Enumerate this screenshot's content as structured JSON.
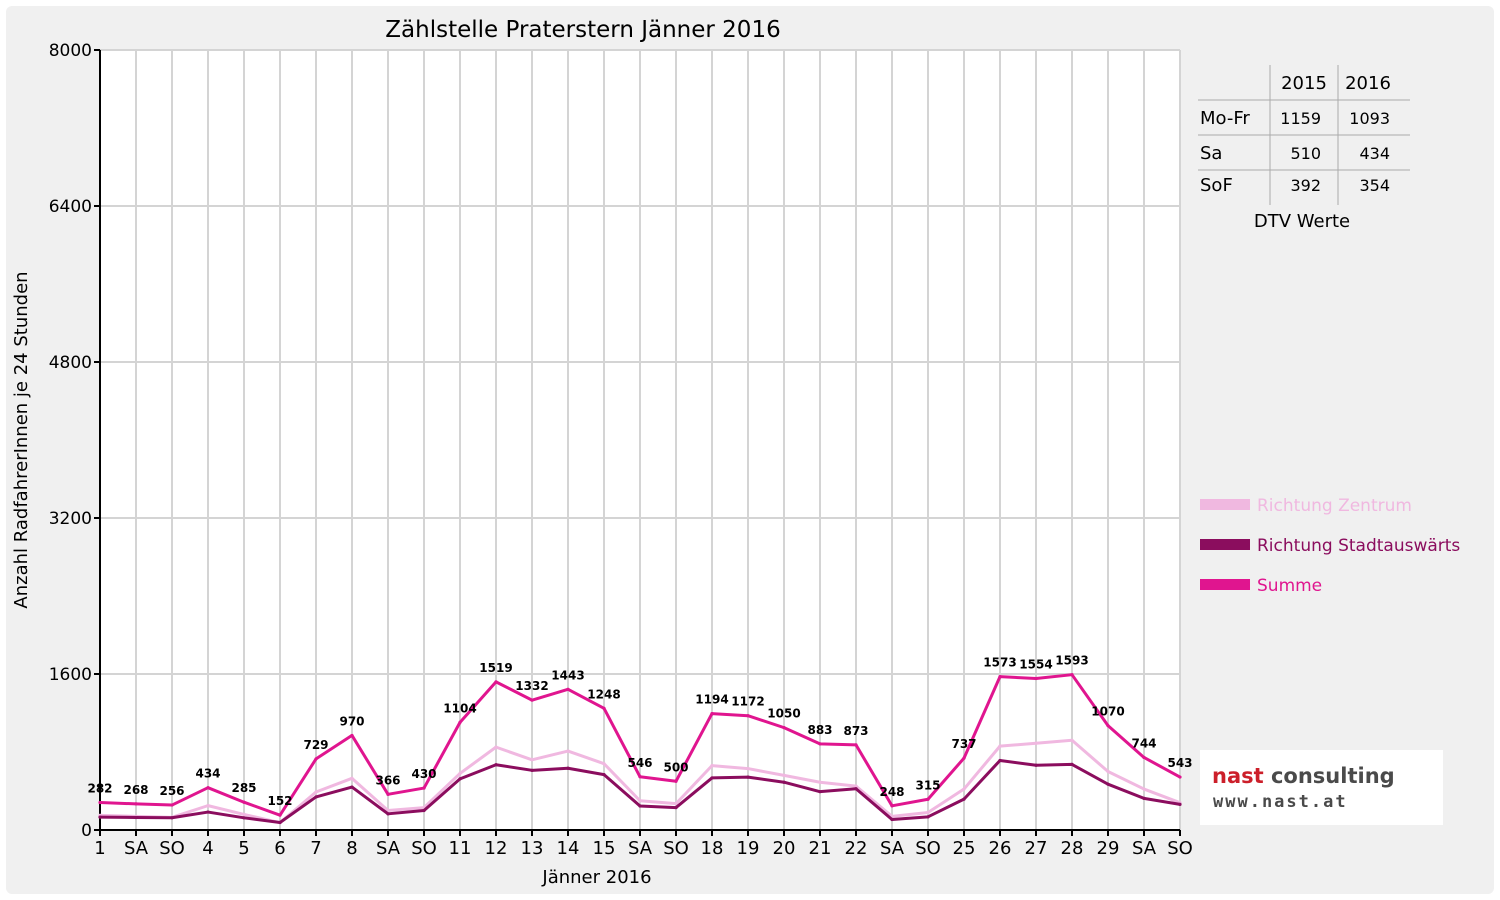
{
  "chart_data": {
    "type": "line",
    "title": "Zählstelle Praterstern Jänner 2016",
    "xlabel": "Jänner 2016",
    "ylabel": "Anzahl RadfahrerInnen je 24 Stunden",
    "ylim": [
      0,
      8000
    ],
    "yticks": [
      0,
      1600,
      3200,
      4800,
      6400,
      8000
    ],
    "grid": true,
    "legend_position": "right",
    "categories": [
      "1",
      "SA",
      "SO",
      "4",
      "5",
      "6",
      "7",
      "8",
      "SA",
      "SO",
      "11",
      "12",
      "13",
      "14",
      "15",
      "SA",
      "SO",
      "18",
      "19",
      "20",
      "21",
      "22",
      "SA",
      "SO",
      "25",
      "26",
      "27",
      "28",
      "29",
      "SA",
      "SO"
    ],
    "red_categories": [
      0,
      2,
      5,
      9,
      16,
      23,
      30
    ],
    "series": [
      {
        "name": "Richtung Zentrum",
        "color": "#f0b8e0",
        "values": [
          150,
          140,
          130,
          250,
          160,
          75,
          390,
          530,
          200,
          230,
          580,
          850,
          720,
          810,
          680,
          300,
          270,
          660,
          630,
          560,
          490,
          450,
          140,
          180,
          420,
          860,
          890,
          920,
          600,
          420,
          280
        ]
      },
      {
        "name": "Richtung Stadtauswärts",
        "color": "#8b0d5e",
        "values": [
          132,
          128,
          126,
          184,
          125,
          77,
          339,
          440,
          166,
          200,
          524,
          669,
          612,
          633,
          568,
          246,
          230,
          534,
          542,
          490,
          393,
          423,
          108,
          135,
          317,
          713,
          664,
          673,
          470,
          324,
          263
        ]
      },
      {
        "name": "Summe",
        "color": "#e0158f",
        "values": [
          282,
          268,
          256,
          434,
          285,
          152,
          729,
          970,
          366,
          430,
          1104,
          1519,
          1332,
          1443,
          1248,
          546,
          500,
          1194,
          1172,
          1050,
          883,
          873,
          248,
          315,
          737,
          1573,
          1554,
          1593,
          1070,
          744,
          543
        ]
      }
    ],
    "data_labels": [
      282,
      268,
      256,
      434,
      285,
      152,
      729,
      970,
      366,
      430,
      1104,
      1519,
      1332,
      1443,
      1248,
      546,
      500,
      1194,
      1172,
      1050,
      883,
      873,
      248,
      315,
      737,
      1573,
      1554,
      1593,
      1070,
      744,
      543
    ]
  },
  "dtv_table": {
    "headers": [
      "",
      "2015",
      "2016"
    ],
    "rows": [
      {
        "label": "Mo-Fr",
        "v2015": "1159",
        "v2016": "1093"
      },
      {
        "label": "Sa",
        "v2015": "510",
        "v2016": "434"
      },
      {
        "label": "SoF",
        "v2015": "392",
        "v2016": "354"
      }
    ],
    "caption": "DTV Werte"
  },
  "logo": {
    "brand_part1": "nast",
    "brand_part2": " consulting",
    "url": "www.nast.at",
    "color_primary": "#cc1f2a",
    "color_secondary": "#4a4a4a"
  }
}
